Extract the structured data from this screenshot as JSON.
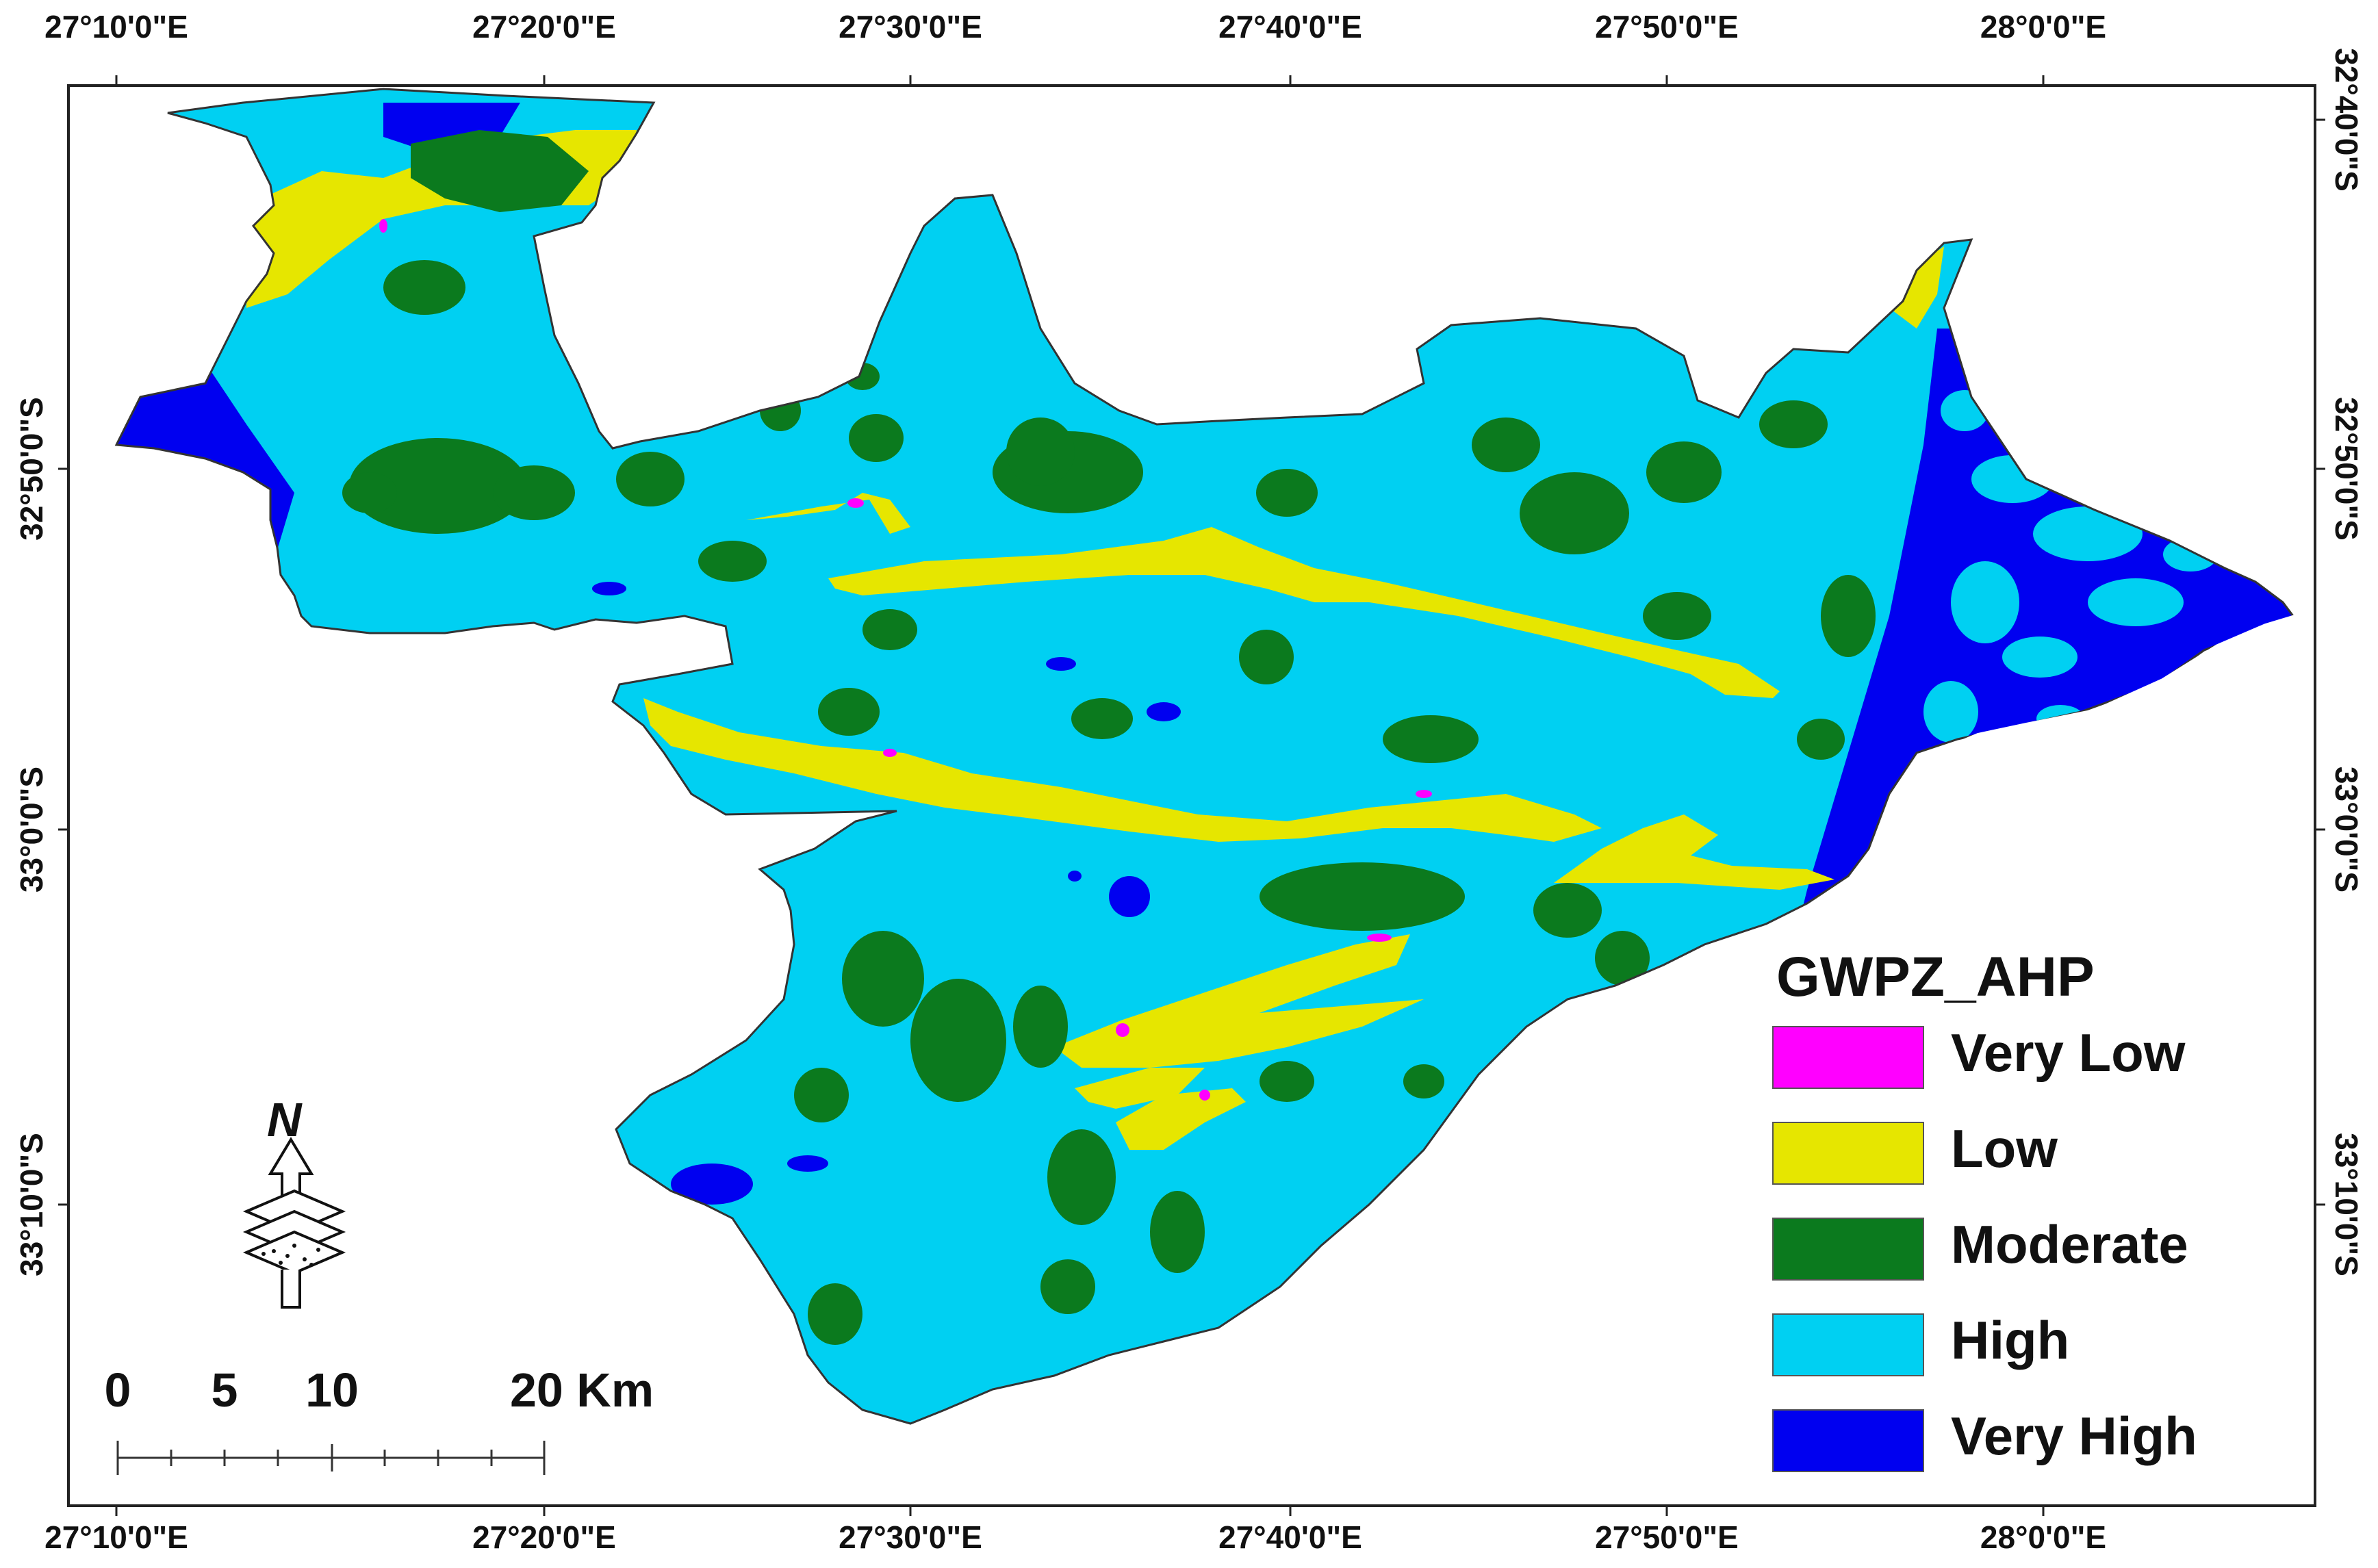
{
  "map": {
    "colors": {
      "very_low": "#ff00ff",
      "low": "#e6e600",
      "moderate": "#0b7a1e",
      "high": "#00d0f2",
      "very_high": "#0000f0"
    },
    "top_ticks": [
      "27°10'0\"E",
      "27°20'0\"E",
      "27°30'0\"E",
      "27°40'0\"E",
      "27°50'0\"E",
      "28°0'0\"E"
    ],
    "bottom_ticks": [
      "27°10'0\"E",
      "27°20'0\"E",
      "27°30'0\"E",
      "27°40'0\"E",
      "27°50'0\"E",
      "28°0'0\"E"
    ],
    "left_ticks": [
      "32°50'0\"S",
      "33°0'0\"S",
      "33°10'0\"S"
    ],
    "right_ticks": [
      "32°40'0\"S",
      "32°50'0\"S",
      "33°0'0\"S",
      "33°10'0\"S"
    ],
    "legend": {
      "title": "GWPZ_AHP",
      "items": [
        {
          "label": "Very Low",
          "color": "#ff00ff"
        },
        {
          "label": "Low",
          "color": "#e6e600"
        },
        {
          "label": "Moderate",
          "color": "#0b7a1e"
        },
        {
          "label": "High",
          "color": "#00d0f2"
        },
        {
          "label": "Very High",
          "color": "#0000f0"
        }
      ]
    },
    "scale_bar": {
      "labels": [
        "0",
        "5",
        "10",
        "20 Km"
      ]
    },
    "north_arrow": {
      "label": "N",
      "icon": "north-arrow-icon"
    }
  }
}
